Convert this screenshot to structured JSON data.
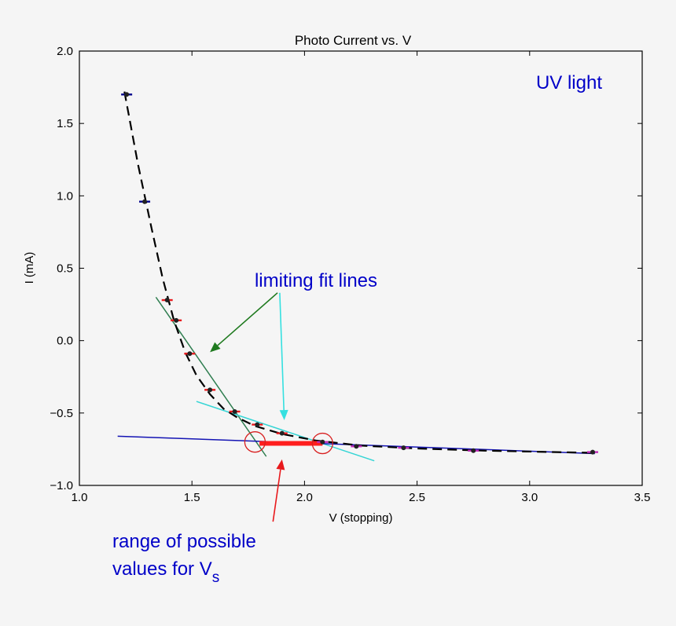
{
  "chart_data": {
    "type": "scatter",
    "title": "Photo Current vs. V",
    "xlabel": "V (stopping)",
    "ylabel": "I (mA)",
    "xlim": [
      1.0,
      3.5
    ],
    "ylim": [
      -1.0,
      2.0
    ],
    "xticks": [
      "1.0",
      "1.5",
      "2.0",
      "2.5",
      "3.0",
      "3.5"
    ],
    "yticks": [
      "−1.0",
      "−0.5",
      "0.0",
      "0.5",
      "1.0",
      "1.5",
      "2.0"
    ],
    "series": [
      {
        "points": [
          {
            "x": 1.21,
            "y": 1.7,
            "color": "#00008b"
          },
          {
            "x": 1.29,
            "y": 0.96,
            "color": "#00008b"
          },
          {
            "x": 1.39,
            "y": 0.28,
            "color": "#e8191c"
          },
          {
            "x": 1.43,
            "y": 0.14,
            "color": "#e8191c"
          },
          {
            "x": 1.49,
            "y": -0.09,
            "color": "#e8191c"
          },
          {
            "x": 1.58,
            "y": -0.34,
            "color": "#e8191c"
          },
          {
            "x": 1.69,
            "y": -0.49,
            "color": "#e8191c"
          },
          {
            "x": 1.79,
            "y": -0.58,
            "color": "#e8191c"
          },
          {
            "x": 1.9,
            "y": -0.64,
            "color": "#e8191c"
          },
          {
            "x": 2.08,
            "y": -0.7,
            "color": "#c02ab8"
          },
          {
            "x": 2.23,
            "y": -0.73,
            "color": "#c02ab8"
          },
          {
            "x": 2.44,
            "y": -0.74,
            "color": "#c02ab8"
          },
          {
            "x": 2.75,
            "y": -0.76,
            "color": "#c02ab8"
          },
          {
            "x": 3.28,
            "y": -0.77,
            "color": "#c02ab8"
          }
        ]
      }
    ],
    "curve": {
      "style": "dashed",
      "color": "#000000",
      "x": [
        1.2,
        1.26,
        1.32,
        1.37,
        1.42,
        1.47,
        1.52,
        1.58,
        1.64,
        1.7,
        1.78,
        1.9,
        2.05,
        2.25,
        2.5,
        2.8,
        3.28
      ],
      "y": [
        1.72,
        1.22,
        0.78,
        0.43,
        0.14,
        -0.08,
        -0.24,
        -0.37,
        -0.47,
        -0.53,
        -0.59,
        -0.645,
        -0.69,
        -0.725,
        -0.745,
        -0.76,
        -0.775
      ]
    },
    "fit_lines": [
      {
        "color": "#2e7d4f",
        "x": [
          1.34,
          1.83
        ],
        "y": [
          0.3,
          -0.8
        ]
      },
      {
        "color": "#35d5d5",
        "x": [
          1.52,
          2.31
        ],
        "y": [
          -0.42,
          -0.83
        ]
      },
      {
        "color": "#1414b4",
        "x": [
          1.17,
          3.29
        ],
        "y": [
          -0.66,
          -0.78
        ]
      }
    ],
    "range_bar": {
      "color": "#ff1e1e",
      "x": [
        1.8,
        2.08
      ],
      "y": [
        -0.71,
        -0.71
      ]
    },
    "circles": [
      {
        "x": 1.78,
        "y": -0.7,
        "color": "#d82020"
      },
      {
        "x": 2.08,
        "y": -0.71,
        "color": "#d82020"
      }
    ],
    "annotations": {
      "uv_light": {
        "text": "UV light",
        "color": "#0000c8"
      },
      "fit_lines": {
        "text": "limiting fit lines",
        "color": "#0000c8"
      },
      "range_line1": {
        "text": "range of possible",
        "color": "#0000c8"
      },
      "range_line2": {
        "text": "values for V",
        "color": "#0000c8"
      },
      "range_sub": {
        "text": "s",
        "color": "#0000c8"
      }
    },
    "arrows": [
      {
        "color": "#1f7a1f",
        "from": [
          1.88,
          0.33
        ],
        "to": [
          1.58,
          -0.08
        ]
      },
      {
        "color": "#35e0e0",
        "from": [
          1.89,
          0.33
        ],
        "to": [
          1.91,
          -0.55
        ]
      },
      {
        "color": "#e8191c",
        "from": [
          1.86,
          -1.25
        ],
        "to": [
          1.9,
          -0.82
        ]
      }
    ]
  }
}
